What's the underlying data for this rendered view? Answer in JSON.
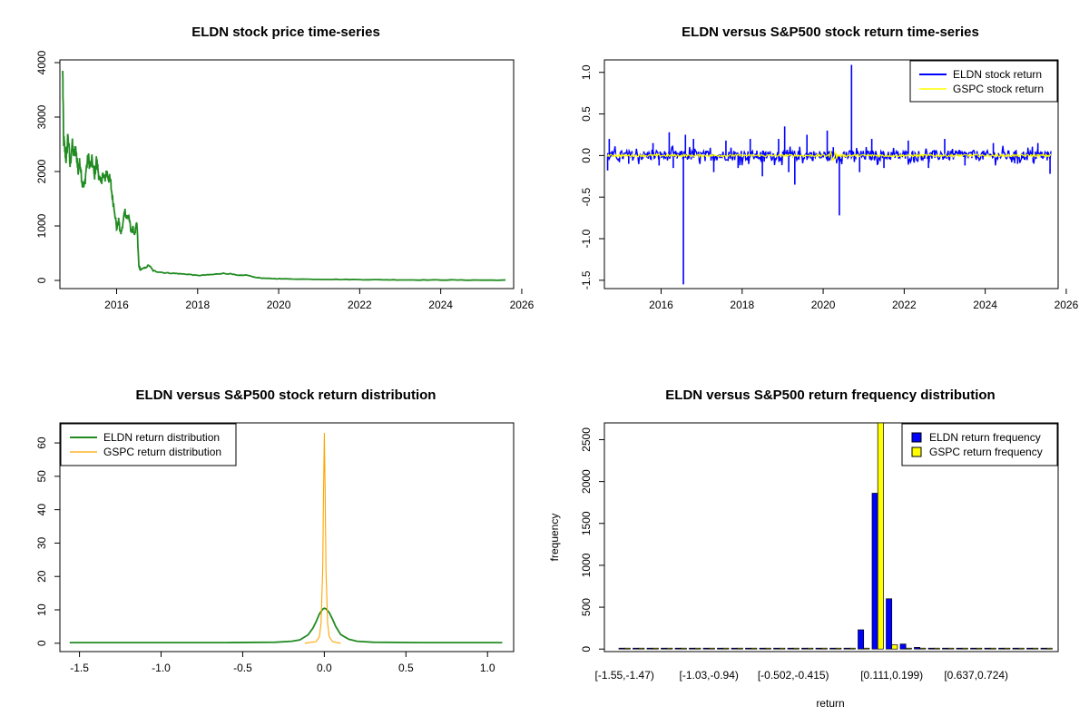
{
  "chart_data": [
    {
      "type": "line",
      "title": "ELDN stock price time-series",
      "xlabel": "",
      "ylabel": "",
      "xlim": [
        2014.6,
        2025.8
      ],
      "ylim": [
        0,
        4000
      ],
      "x_ticks": [
        "2016",
        "2018",
        "2020",
        "2022",
        "2024",
        "2026"
      ],
      "y_ticks": [
        "0",
        "1000",
        "2000",
        "3000",
        "4000"
      ],
      "color": "#228b22",
      "series": [
        {
          "x": [
            2014.67,
            2014.69,
            2014.72,
            2014.76,
            2014.8,
            2014.85,
            2014.9,
            2014.95,
            2015.0,
            2015.05,
            2015.1,
            2015.15,
            2015.2,
            2015.25,
            2015.3,
            2015.35,
            2015.4,
            2015.45,
            2015.5,
            2015.55,
            2015.6,
            2015.65,
            2015.7,
            2015.75,
            2015.8,
            2015.85,
            2015.9,
            2015.95,
            2016.0,
            2016.05,
            2016.1,
            2016.15,
            2016.2,
            2016.25,
            2016.3,
            2016.35,
            2016.4,
            2016.45,
            2016.5,
            2016.55,
            2016.6,
            2016.7,
            2016.8,
            2016.9,
            2017.0,
            2017.2,
            2017.4,
            2017.6,
            2017.8,
            2018.0,
            2018.2,
            2018.4,
            2018.6,
            2018.8,
            2019.0,
            2019.2,
            2019.4,
            2019.6,
            2019.8,
            2020.0,
            2020.5,
            2021.0,
            2021.5,
            2022.0,
            2022.5,
            2023.0,
            2023.5,
            2024.0,
            2024.5,
            2025.0,
            2025.6
          ],
          "y": [
            3850,
            2600,
            2400,
            2200,
            2700,
            2100,
            2500,
            2300,
            2400,
            2000,
            2200,
            1800,
            1700,
            2050,
            2250,
            2100,
            2200,
            1900,
            2200,
            2000,
            1750,
            1950,
            1850,
            2000,
            1900,
            1800,
            1500,
            1300,
            950,
            1100,
            850,
            1000,
            1300,
            1150,
            1200,
            900,
            950,
            850,
            1050,
            250,
            200,
            230,
            280,
            180,
            160,
            140,
            130,
            120,
            110,
            90,
            100,
            110,
            130,
            120,
            90,
            100,
            60,
            40,
            35,
            30,
            25,
            20,
            18,
            15,
            12,
            10,
            9,
            8,
            7,
            6,
            5
          ]
        }
      ]
    },
    {
      "type": "line",
      "title": "ELDN versus S&P500 stock return time-series",
      "xlabel": "",
      "ylabel": "",
      "xlim": [
        2014.6,
        2025.8
      ],
      "ylim": [
        -1.55,
        1.1
      ],
      "x_ticks": [
        "2016",
        "2018",
        "2020",
        "2022",
        "2024",
        "2026"
      ],
      "y_ticks": [
        "-1.5",
        "-1.0",
        "-0.5",
        "0.0",
        "0.5",
        "1.0"
      ],
      "legend_position": "top-right",
      "series": [
        {
          "name": "ELDN stock return",
          "color": "#0000ff",
          "spikes": [
            [
              2014.68,
              -0.18
            ],
            [
              2014.72,
              0.2
            ],
            [
              2015.2,
              -0.1
            ],
            [
              2015.8,
              0.15
            ],
            [
              2015.95,
              -0.12
            ],
            [
              2016.2,
              0.28
            ],
            [
              2016.3,
              -0.15
            ],
            [
              2016.55,
              -1.55
            ],
            [
              2016.6,
              0.25
            ],
            [
              2016.8,
              0.2
            ],
            [
              2017.3,
              -0.2
            ],
            [
              2017.6,
              0.18
            ],
            [
              2017.9,
              -0.15
            ],
            [
              2018.2,
              0.2
            ],
            [
              2018.5,
              -0.25
            ],
            [
              2018.9,
              0.2
            ],
            [
              2019.05,
              0.35
            ],
            [
              2019.15,
              -0.2
            ],
            [
              2019.3,
              -0.35
            ],
            [
              2019.6,
              0.25
            ],
            [
              2020.1,
              0.3
            ],
            [
              2020.25,
              0.1
            ],
            [
              2020.4,
              -0.72
            ],
            [
              2020.7,
              1.09
            ],
            [
              2020.9,
              -0.2
            ],
            [
              2021.2,
              0.2
            ],
            [
              2021.5,
              -0.15
            ],
            [
              2022.1,
              0.18
            ],
            [
              2022.6,
              -0.15
            ],
            [
              2023.0,
              0.2
            ],
            [
              2023.5,
              -0.12
            ],
            [
              2024.2,
              0.15
            ],
            [
              2024.8,
              -0.1
            ],
            [
              2025.3,
              0.15
            ],
            [
              2025.6,
              -0.22
            ]
          ],
          "noise_amplitude": 0.06
        },
        {
          "name": "GSPC stock return",
          "color": "#ffff00",
          "noise_amplitude": 0.015
        }
      ]
    },
    {
      "type": "line",
      "title": "ELDN versus S&P500 stock return distribution",
      "xlabel": "",
      "ylabel": "",
      "xlim": [
        -1.62,
        1.16
      ],
      "ylim": [
        0,
        66
      ],
      "x_ticks": [
        "-1.5",
        "-1.0",
        "-0.5",
        "0.0",
        "0.5",
        "1.0"
      ],
      "y_ticks": [
        "0",
        "10",
        "20",
        "30",
        "40",
        "50",
        "60"
      ],
      "legend_position": "top-left",
      "series": [
        {
          "name": "ELDN return distribution",
          "color": "#228b22",
          "x": [
            -1.56,
            -0.6,
            -0.3,
            -0.2,
            -0.15,
            -0.1,
            -0.07,
            -0.05,
            -0.03,
            -0.01,
            0.0,
            0.01,
            0.03,
            0.05,
            0.07,
            0.1,
            0.15,
            0.2,
            0.3,
            0.6,
            1.09
          ],
          "y": [
            0.2,
            0.2,
            0.3,
            0.6,
            1.0,
            2.5,
            4.5,
            6.5,
            8.8,
            10.2,
            10.5,
            10.3,
            9.2,
            7.2,
            5.0,
            2.6,
            1.2,
            0.6,
            0.3,
            0.2,
            0.2
          ]
        },
        {
          "name": "GSPC return distribution",
          "color": "#ffa500",
          "x": [
            -0.12,
            -0.05,
            -0.03,
            -0.02,
            -0.01,
            -0.005,
            0.0,
            0.005,
            0.01,
            0.02,
            0.03,
            0.05,
            0.1
          ],
          "y": [
            0,
            0.5,
            2,
            6,
            22,
            45,
            63,
            45,
            22,
            6,
            2,
            0.5,
            0
          ]
        }
      ]
    },
    {
      "type": "bar",
      "title": "ELDN versus S&P500 return frequency distribution",
      "xlabel": "return",
      "ylabel": "frequency",
      "ylim": [
        0,
        2700
      ],
      "y_ticks": [
        "0",
        "500",
        "1000",
        "1500",
        "2000",
        "2500"
      ],
      "x_tick_labels": [
        "[-1.55,-1.47)",
        "[-1.03,-0.94)",
        "[-0.502,-0.415)",
        "[0.111,0.199)",
        "[0.637,0.724)"
      ],
      "x_tick_label_bins": [
        0,
        6,
        12,
        19,
        25
      ],
      "legend_position": "top-right",
      "bins": 31,
      "series": [
        {
          "name": "ELDN return frequency",
          "color": "#0000ff",
          "values": [
            1,
            0,
            0,
            0,
            0,
            0,
            0,
            0,
            0,
            0,
            0,
            0,
            0,
            0,
            0,
            2,
            8,
            230,
            1860,
            600,
            60,
            20,
            3,
            1,
            0,
            0,
            0,
            0,
            0,
            0,
            1
          ]
        },
        {
          "name": "GSPC return frequency",
          "color": "#ffff00",
          "values": [
            0,
            0,
            0,
            0,
            0,
            0,
            0,
            0,
            0,
            0,
            0,
            0,
            0,
            0,
            0,
            0,
            0,
            2,
            2700,
            50,
            0,
            0,
            0,
            0,
            0,
            0,
            0,
            0,
            0,
            0,
            0
          ]
        }
      ]
    }
  ]
}
